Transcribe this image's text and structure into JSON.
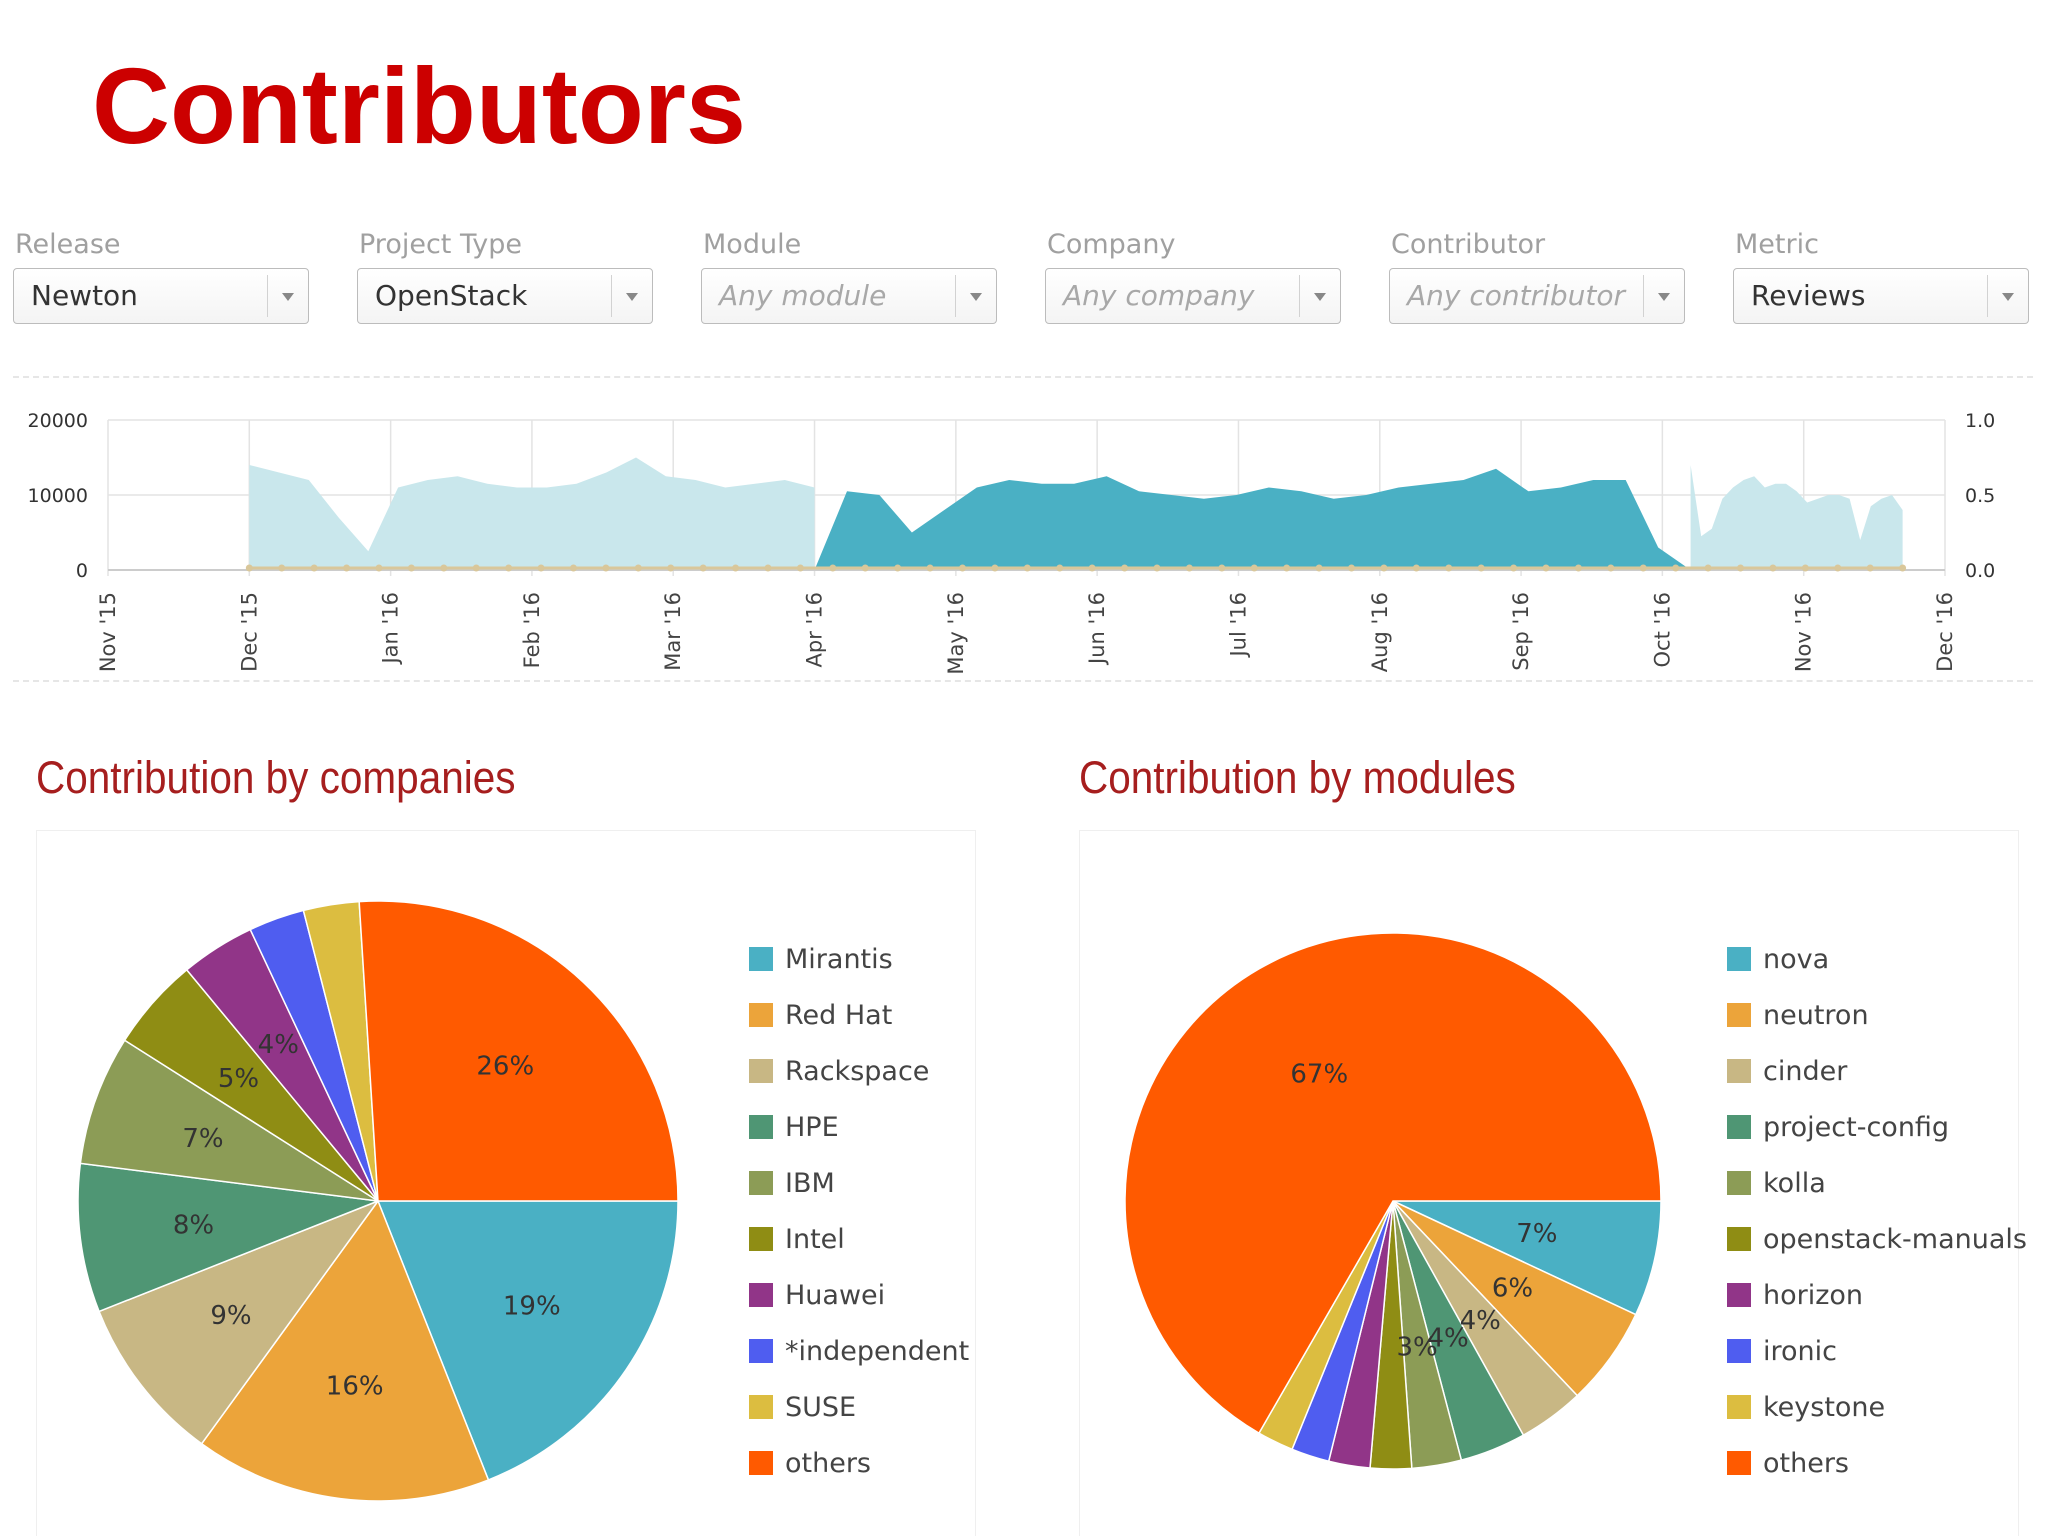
{
  "page": {
    "title": "Contributors"
  },
  "filters": [
    {
      "label": "Release",
      "value": "Newton",
      "placeholder": false
    },
    {
      "label": "Project Type",
      "value": "OpenStack",
      "placeholder": false
    },
    {
      "label": "Module",
      "value": "Any module",
      "placeholder": true
    },
    {
      "label": "Company",
      "value": "Any company",
      "placeholder": true
    },
    {
      "label": "Contributor",
      "value": "Any contributor",
      "placeholder": true
    },
    {
      "label": "Metric",
      "value": "Reviews",
      "placeholder": false
    }
  ],
  "sections": {
    "companies_title": "Contribution by companies",
    "modules_title": "Contribution by modules"
  },
  "chart_data": [
    {
      "type": "area",
      "x_labels": [
        "Nov '15",
        "Dec '15",
        "Jan '16",
        "Feb '16",
        "Mar '16",
        "Apr '16",
        "May '16",
        "Jun '16",
        "Jul '16",
        "Aug '16",
        "Sep '16",
        "Oct '16",
        "Nov '16",
        "Dec '16"
      ],
      "y_ticks": [
        0,
        10000,
        20000
      ],
      "y2_ticks": [
        "0.0",
        "0.5",
        "1.0"
      ],
      "ylim": [
        0,
        20000
      ],
      "y2lim": [
        0,
        1
      ],
      "grid": true,
      "series": [
        {
          "values": [
            14000,
            13000,
            12000,
            7000,
            2500,
            11000,
            12000,
            12500,
            11500,
            11000,
            11000,
            11500,
            13000,
            15000,
            12500,
            12000,
            11000,
            11500,
            12000,
            11000
          ],
          "color": "#c9e7ec"
        },
        {
          "values": [
            0,
            10500,
            10000,
            5000,
            8000,
            11000,
            12000,
            11500,
            11500,
            12500,
            10500,
            10000,
            9500,
            10000,
            11000,
            10500,
            9500,
            10000,
            11000,
            11500,
            12000,
            13500,
            10500,
            11000,
            12000,
            12000,
            3000,
            0
          ],
          "color": "#4ab0c4"
        },
        {
          "values": [
            14000,
            4500,
            5500,
            9500,
            11000,
            12000,
            12500,
            11000,
            11500,
            11500,
            10500,
            9000,
            9500,
            10000,
            10000,
            9500,
            4000,
            8500,
            9500,
            10000,
            8000
          ],
          "color": "#c9e7ec"
        }
      ]
    },
    {
      "type": "pie",
      "legend": [
        {
          "name": "Mirantis",
          "value": 19,
          "label": "19%",
          "color": "#4ab0c4"
        },
        {
          "name": "Red Hat",
          "value": 16,
          "label": "16%",
          "color": "#eca43a"
        },
        {
          "name": "Rackspace",
          "value": 9,
          "label": "9%",
          "color": "#c8b784"
        },
        {
          "name": "HPE",
          "value": 8,
          "label": "8%",
          "color": "#4f9674"
        },
        {
          "name": "IBM",
          "value": 7,
          "label": "7%",
          "color": "#8c9c56"
        },
        {
          "name": "Intel",
          "value": 5,
          "label": "5%",
          "color": "#8f8d14"
        },
        {
          "name": "Huawei",
          "value": 4,
          "label": "4%",
          "color": "#913588"
        },
        {
          "name": "*independent",
          "value": 3,
          "label": "",
          "color": "#4f5df0"
        },
        {
          "name": "SUSE",
          "value": 3,
          "label": "",
          "color": "#dcbd40"
        },
        {
          "name": "others",
          "value": 26,
          "label": "26%",
          "color": "#ff5a00"
        }
      ],
      "legend_placement": "right"
    },
    {
      "type": "pie",
      "legend": [
        {
          "name": "nova",
          "value": 7,
          "label": "7%",
          "color": "#4ab0c4"
        },
        {
          "name": "neutron",
          "value": 6,
          "label": "6%",
          "color": "#eca43a"
        },
        {
          "name": "cinder",
          "value": 4,
          "label": "4%",
          "color": "#c8b784"
        },
        {
          "name": "project-config",
          "value": 4,
          "label": "4%",
          "color": "#4f9674"
        },
        {
          "name": "kolla",
          "value": 3,
          "label": "3%",
          "color": "#8c9c56"
        },
        {
          "name": "openstack-manuals",
          "value": 2.5,
          "label": "",
          "color": "#8f8d14"
        },
        {
          "name": "horizon",
          "value": 2.5,
          "label": "",
          "color": "#913588"
        },
        {
          "name": "ironic",
          "value": 2.3,
          "label": "",
          "color": "#4f5df0"
        },
        {
          "name": "keystone",
          "value": 2.2,
          "label": "",
          "color": "#dcbd40"
        },
        {
          "name": "others",
          "value": 67,
          "label": "67%",
          "color": "#ff5a00"
        }
      ],
      "legend_placement": "right"
    }
  ]
}
